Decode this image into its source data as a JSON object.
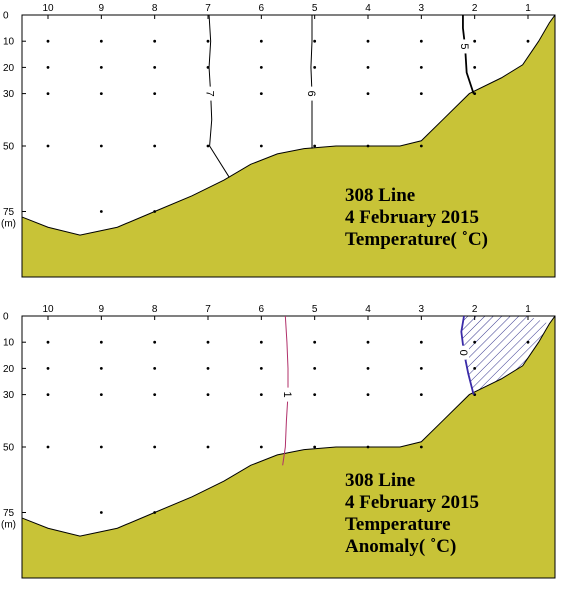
{
  "colors": {
    "bottom_fill": "#c8c337",
    "bottom_edge": "#000000",
    "contour_temp": "#000000",
    "contour_anomaly_pos": "#b0306a",
    "contour_anomaly_zero": "#3a2aa8",
    "hatch": "#3a3a90"
  },
  "chart_data": [
    {
      "type": "contour",
      "stations": [
        10,
        9,
        8,
        7,
        6,
        5,
        4,
        3,
        2,
        1
      ],
      "station_labels": [
        "10",
        "9",
        "8",
        "7",
        "6",
        "5",
        "4",
        "3",
        "2",
        "1"
      ],
      "depth_ticks": [
        0,
        10,
        20,
        30,
        50,
        75
      ],
      "depth_tick_labels": [
        "0",
        "10",
        "20",
        "30",
        "50",
        "75"
      ],
      "depth_unit": "(m)",
      "depth_range": [
        0,
        100
      ],
      "depth_axis": "inverted",
      "sample_depths": {
        "10": [],
        "9": [
          10,
          20,
          30,
          50,
          75
        ],
        "8": [
          10,
          20,
          30,
          50,
          75
        ],
        "7": [
          10,
          20,
          30,
          50
        ],
        "6": [
          10,
          20,
          30,
          50
        ],
        "5": [
          10,
          20,
          30,
          50
        ],
        "4": [
          10,
          20,
          30,
          50
        ],
        "3": [
          10,
          20,
          30,
          50
        ],
        "2": [
          10,
          20,
          30
        ],
        "1": [
          10
        ]
      },
      "sample_depths_st10": [
        10,
        20,
        30,
        50,
        75
      ],
      "bottom_profile": [
        {
          "station": 10.5,
          "depth": 77
        },
        {
          "station": 10.0,
          "depth": 81
        },
        {
          "station": 9.4,
          "depth": 84
        },
        {
          "station": 8.7,
          "depth": 81
        },
        {
          "station": 8.0,
          "depth": 75
        },
        {
          "station": 7.3,
          "depth": 69
        },
        {
          "station": 6.7,
          "depth": 63
        },
        {
          "station": 6.2,
          "depth": 57
        },
        {
          "station": 5.7,
          "depth": 53
        },
        {
          "station": 5.2,
          "depth": 51
        },
        {
          "station": 4.6,
          "depth": 50
        },
        {
          "station": 4.0,
          "depth": 50
        },
        {
          "station": 3.4,
          "depth": 50
        },
        {
          "station": 3.0,
          "depth": 48
        },
        {
          "station": 2.6,
          "depth": 40
        },
        {
          "station": 2.1,
          "depth": 30
        },
        {
          "station": 1.5,
          "depth": 24
        },
        {
          "station": 1.1,
          "depth": 19
        },
        {
          "station": 0.8,
          "depth": 10
        },
        {
          "station": 0.6,
          "depth": 3
        }
      ],
      "contours": [
        {
          "label": "7",
          "points": [
            {
              "station": 6.98,
              "depth": 0
            },
            {
              "station": 6.95,
              "depth": 10
            },
            {
              "station": 6.98,
              "depth": 20
            },
            {
              "station": 6.95,
              "depth": 30
            },
            {
              "station": 6.93,
              "depth": 40
            },
            {
              "station": 6.97,
              "depth": 50
            },
            {
              "station": 6.6,
              "depth": 62
            }
          ]
        },
        {
          "label": "6",
          "points": [
            {
              "station": 5.05,
              "depth": 0
            },
            {
              "station": 5.05,
              "depth": 10
            },
            {
              "station": 5.07,
              "depth": 20
            },
            {
              "station": 5.05,
              "depth": 30
            },
            {
              "station": 5.05,
              "depth": 40
            },
            {
              "station": 5.05,
              "depth": 51
            }
          ]
        },
        {
          "label": "5",
          "points": [
            {
              "station": 2.22,
              "depth": 0
            },
            {
              "station": 2.22,
              "depth": 5
            },
            {
              "station": 2.18,
              "depth": 12
            },
            {
              "station": 2.15,
              "depth": 22
            },
            {
              "station": 2.02,
              "depth": 30
            }
          ]
        }
      ],
      "annotation": [
        "308 Line",
        "4 February 2015",
        "Temperature( ˚C)"
      ]
    },
    {
      "type": "contour",
      "stations": [
        10,
        9,
        8,
        7,
        6,
        5,
        4,
        3,
        2,
        1
      ],
      "station_labels": [
        "10",
        "9",
        "8",
        "7",
        "6",
        "5",
        "4",
        "3",
        "2",
        "1"
      ],
      "depth_ticks": [
        0,
        10,
        20,
        30,
        50,
        75
      ],
      "depth_tick_labels": [
        "0",
        "10",
        "20",
        "30",
        "50",
        "75"
      ],
      "depth_unit": "(m)",
      "depth_range": [
        0,
        100
      ],
      "depth_axis": "inverted",
      "bottom_profile": [
        {
          "station": 10.5,
          "depth": 77
        },
        {
          "station": 10.0,
          "depth": 81
        },
        {
          "station": 9.4,
          "depth": 84
        },
        {
          "station": 8.7,
          "depth": 81
        },
        {
          "station": 8.0,
          "depth": 75
        },
        {
          "station": 7.3,
          "depth": 69
        },
        {
          "station": 6.7,
          "depth": 63
        },
        {
          "station": 6.2,
          "depth": 57
        },
        {
          "station": 5.7,
          "depth": 53
        },
        {
          "station": 5.2,
          "depth": 51
        },
        {
          "station": 4.6,
          "depth": 50
        },
        {
          "station": 4.0,
          "depth": 50
        },
        {
          "station": 3.4,
          "depth": 50
        },
        {
          "station": 3.0,
          "depth": 48
        },
        {
          "station": 2.6,
          "depth": 40
        },
        {
          "station": 2.1,
          "depth": 30
        },
        {
          "station": 1.5,
          "depth": 24
        },
        {
          "station": 1.1,
          "depth": 19
        },
        {
          "station": 0.8,
          "depth": 10
        },
        {
          "station": 0.6,
          "depth": 3
        }
      ],
      "contours": [
        {
          "label": "1",
          "color_key": "contour_anomaly_pos",
          "points": [
            {
              "station": 5.55,
              "depth": 0
            },
            {
              "station": 5.52,
              "depth": 10
            },
            {
              "station": 5.5,
              "depth": 20
            },
            {
              "station": 5.5,
              "depth": 30
            },
            {
              "station": 5.53,
              "depth": 40
            },
            {
              "station": 5.55,
              "depth": 50
            },
            {
              "station": 5.6,
              "depth": 57
            }
          ]
        },
        {
          "label": "0",
          "color_key": "contour_anomaly_zero",
          "points": [
            {
              "station": 2.2,
              "depth": 0
            },
            {
              "station": 2.25,
              "depth": 6
            },
            {
              "station": 2.2,
              "depth": 14
            },
            {
              "station": 2.12,
              "depth": 22
            },
            {
              "station": 2.02,
              "depth": 30
            }
          ]
        }
      ],
      "hatched_region": "negative anomaly between the 0 contour and the shelf",
      "annotation": [
        "308 Line",
        "4 February 2015",
        "Temperature",
        "Anomaly( ˚C)"
      ]
    }
  ]
}
